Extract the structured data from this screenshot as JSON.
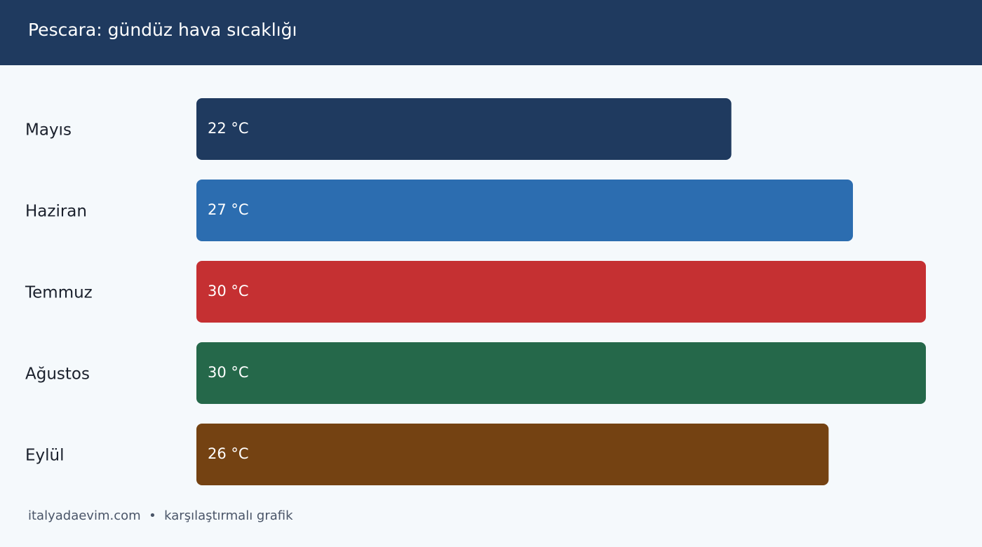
{
  "chart_data": {
    "type": "bar",
    "orientation": "horizontal",
    "title": "Pescara: gündüz hava sıcaklığı",
    "categories": [
      "Mayıs",
      "Haziran",
      "Temmuz",
      "Ağustos",
      "Eylül"
    ],
    "values": [
      22,
      27,
      30,
      30,
      26
    ],
    "value_labels": [
      "22 °C",
      "27 °C",
      "30 °C",
      "30 °C",
      "26 °C"
    ],
    "colors": [
      "#1f3a5f",
      "#2c6db0",
      "#c53032",
      "#25684a",
      "#744212"
    ],
    "footer": "italyadaevim.com  •  karşılaştırmalı grafik"
  }
}
